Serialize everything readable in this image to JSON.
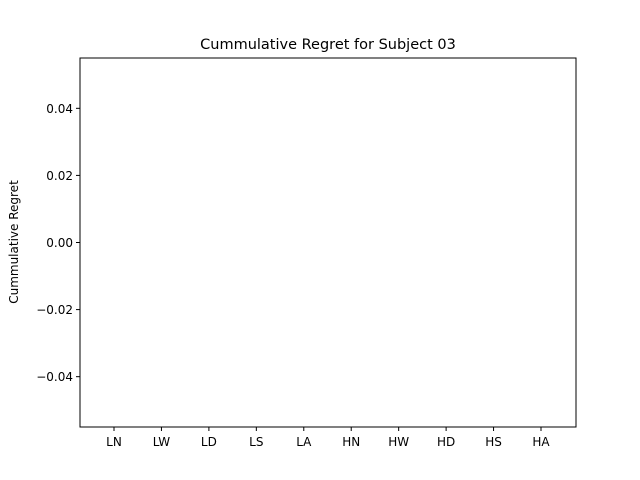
{
  "chart_data": {
    "type": "bar",
    "title": "Cummulative Regret for Subject 03",
    "xlabel": "",
    "ylabel": "Cummulative Regret",
    "categories": [
      "LN",
      "LW",
      "LD",
      "LS",
      "LA",
      "HN",
      "HW",
      "HD",
      "HS",
      "HA"
    ],
    "values": [
      0,
      0,
      0,
      0,
      0,
      0,
      0,
      0,
      0,
      0
    ],
    "ylim": [
      -0.055,
      0.055
    ],
    "yticks": [
      -0.04,
      -0.02,
      0.0,
      0.02,
      0.04
    ],
    "ytick_labels": [
      "−0.04",
      "−0.02",
      "0.00",
      "0.02",
      "0.04"
    ],
    "grid": false,
    "legend": "none",
    "colors": {
      "axes": "#000000",
      "background": "#ffffff",
      "bar": "#1f77b4"
    }
  }
}
